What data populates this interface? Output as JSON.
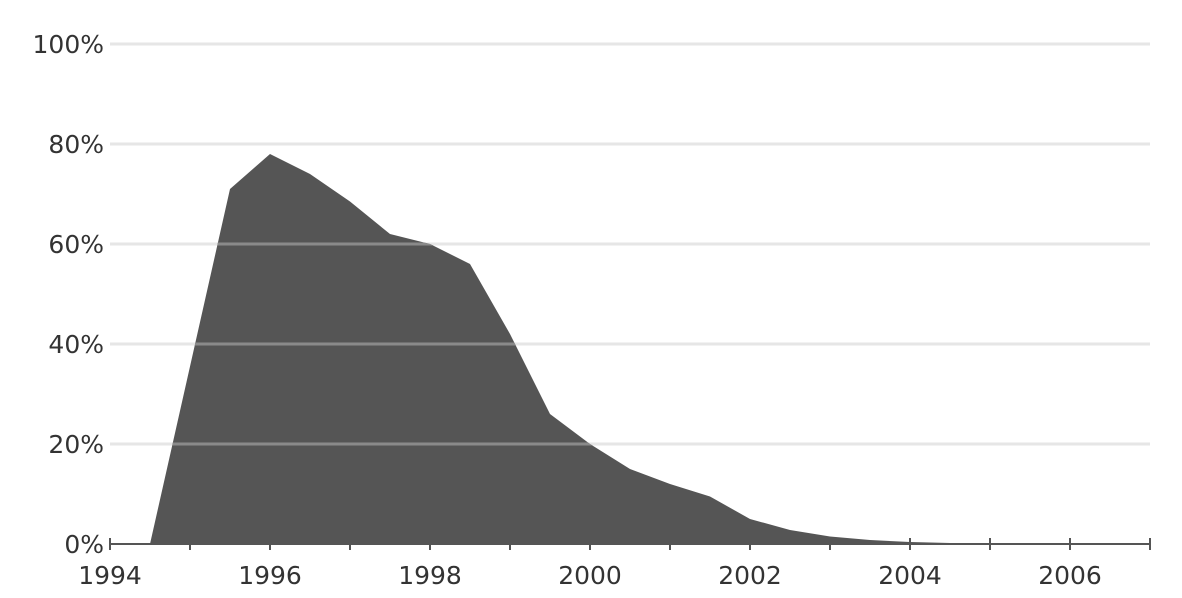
{
  "chart_data": {
    "type": "area",
    "x": [
      1994.5,
      1995.5,
      1996.0,
      1996.5,
      1997.0,
      1997.5,
      1998.0,
      1998.5,
      1999.0,
      1999.5,
      2000.0,
      2000.5,
      2001.0,
      2001.5,
      2002.0,
      2002.5,
      2003.0,
      2003.5,
      2004.0,
      2004.5,
      2005.0,
      2005.5,
      2006.0,
      2006.5,
      2007.0
    ],
    "series": [
      {
        "values": [
          0,
          71,
          78,
          74,
          68.5,
          62,
          60,
          56,
          42,
          26,
          20,
          15,
          12,
          9.5,
          5,
          2.8,
          1.5,
          0.8,
          0.4,
          0.2,
          0.1,
          0.05,
          0.02,
          0.01,
          0
        ]
      }
    ],
    "xlim": [
      1994,
      2007
    ],
    "ylim": [
      0,
      100
    ],
    "x_ticks": [
      "1994",
      "1996",
      "1998",
      "2000",
      "2002",
      "2004",
      "2006"
    ],
    "y_ticks": [
      "0%",
      "20%",
      "40%",
      "60%",
      "80%",
      "100%"
    ],
    "grid": true,
    "fill_color": "#555555"
  }
}
